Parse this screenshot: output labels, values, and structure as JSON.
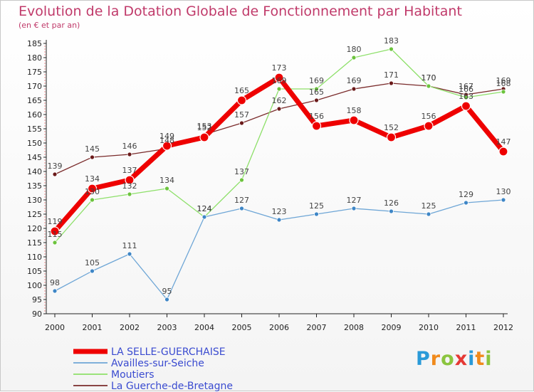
{
  "header": {
    "title": "Evolution de la Dotation Globale de Fonctionnement par Habitant",
    "subtitle": "(en € et par an)"
  },
  "brand": {
    "name": "Proxiti",
    "letters": [
      "P",
      "r",
      "o",
      "x",
      "i",
      "t",
      "i"
    ],
    "colors": [
      "#2a9ad8",
      "#f08a1c",
      "#8bc53f",
      "#e53935",
      "#2a9ad8",
      "#f08a1c",
      "#8bc53f"
    ]
  },
  "chart_data": {
    "type": "line",
    "title": "Evolution de la Dotation Globale de Fonctionnement par Habitant",
    "subtitle": "(en € et par an)",
    "xlabel": "",
    "ylabel": "",
    "x": [
      2000,
      2001,
      2002,
      2003,
      2004,
      2005,
      2006,
      2007,
      2008,
      2009,
      2010,
      2011,
      2012
    ],
    "ylim": [
      90,
      185
    ],
    "yticks": [
      90,
      95,
      100,
      105,
      110,
      115,
      120,
      125,
      130,
      135,
      140,
      145,
      150,
      155,
      160,
      165,
      170,
      175,
      180,
      185
    ],
    "grid": false,
    "legend": "bottom-left",
    "series": [
      {
        "name": "La Guerche-de-Bretagne",
        "color": "#7a2b2b",
        "marker": "#6b1a1a",
        "width": 1.3,
        "radius": 3,
        "values": [
          139,
          145,
          146,
          148,
          153,
          157,
          162,
          165,
          169,
          171,
          170,
          167,
          169
        ]
      },
      {
        "name": "Moutiers",
        "color": "#8ee06a",
        "marker": "#6cc33d",
        "width": 1.3,
        "radius": 3,
        "values": [
          115,
          130,
          132,
          134,
          124,
          137,
          169,
          169,
          180,
          183,
          170,
          166,
          168
        ]
      },
      {
        "name": "Availles-sur-Seiche",
        "color": "#6ea6d6",
        "marker": "#3e86c6",
        "width": 1.3,
        "radius": 3,
        "values": [
          98,
          105,
          111,
          95,
          124,
          127,
          123,
          125,
          127,
          126,
          125,
          129,
          130
        ]
      },
      {
        "name": "LA SELLE-GUERCHAISE",
        "color": "#ee0000",
        "marker": "#ee0000",
        "width": 7,
        "radius": 6,
        "values": [
          119,
          134,
          137,
          149,
          152,
          165,
          173,
          156,
          158,
          152,
          156,
          163,
          147
        ]
      }
    ],
    "legend_entries": [
      "LA SELLE-GUERCHAISE",
      "Availles-sur-Seiche",
      "Moutiers",
      "La Guerche-de-Bretagne"
    ]
  }
}
